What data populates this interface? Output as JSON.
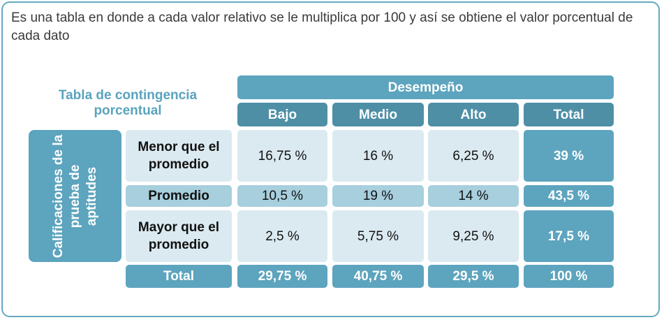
{
  "description": "Es una tabla en donde a cada valor relativo se le multiplica por 100 y así se obtiene el valor porcentual de cada dato",
  "table": {
    "caption": "Tabla de contingencia porcentual",
    "column_group_header": "Desempeño",
    "columns": [
      "Bajo",
      "Medio",
      "Alto",
      "Total"
    ],
    "row_group_header": "Calificaciones de la prueba de aptitudes",
    "rows": [
      {
        "label": "Menor que el promedio",
        "values": [
          "16,75 %",
          "16 %",
          "6,25 %"
        ],
        "total": "39 %"
      },
      {
        "label": "Promedio",
        "values": [
          "10,5 %",
          "19 %",
          "14 %"
        ],
        "total": "43,5 %"
      },
      {
        "label": "Mayor que el promedio",
        "values": [
          "2,5 %",
          "5,75 %",
          "9,25 %"
        ],
        "total": "17,5 %"
      }
    ],
    "total_row": {
      "label": "Total",
      "values": [
        "29,75 %",
        "40,75 %",
        "29,5 %"
      ],
      "total": "100 %"
    }
  },
  "colors": {
    "frame": "#65a9c0",
    "header": "#5da4be",
    "subheader": "#4e8fa6",
    "cell_light": "#dbeaf1",
    "cell_mid": "#a7cfdd"
  }
}
